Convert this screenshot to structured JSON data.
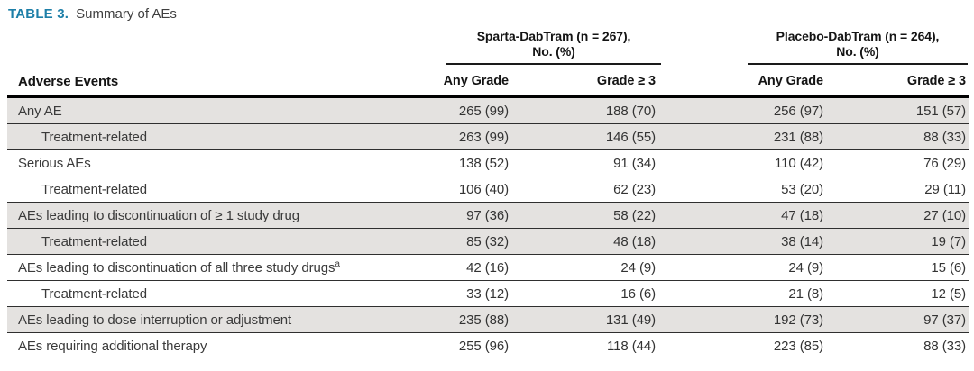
{
  "caption": {
    "label": "TABLE 3.",
    "text": "Summary of AEs"
  },
  "colors": {
    "accent_teal": "#1d7fa8",
    "row_stripe": "#e4e2e0",
    "rule_thin": "#2f2f2f",
    "rule_thick": "#000000"
  },
  "table": {
    "groups": [
      {
        "title_line1": "Sparta-DabTram (n = 267),",
        "title_line2": "No. (%)"
      },
      {
        "title_line1": "Placebo-DabTram (n = 264),",
        "title_line2": "No. (%)"
      }
    ],
    "columns": {
      "label_header": "Adverse Events",
      "sub_headers": [
        "Any Grade",
        "Grade ≥ 3",
        "Any Grade",
        "Grade ≥ 3"
      ]
    },
    "rows": [
      {
        "label": "Any AE",
        "indent": false,
        "shaded": true,
        "cells": [
          "265 (99)",
          "188 (70)",
          "256 (97)",
          "151 (57)"
        ]
      },
      {
        "label": "Treatment-related",
        "indent": true,
        "shaded": true,
        "cells": [
          "263 (99)",
          "146 (55)",
          "231 (88)",
          "88 (33)"
        ]
      },
      {
        "label": "Serious AEs",
        "indent": false,
        "shaded": false,
        "cells": [
          "138 (52)",
          "91 (34)",
          "110 (42)",
          "76 (29)"
        ]
      },
      {
        "label": "Treatment-related",
        "indent": true,
        "shaded": false,
        "cells": [
          "106 (40)",
          "62 (23)",
          "53 (20)",
          "29 (11)"
        ]
      },
      {
        "label": "AEs leading to discontinuation of ≥ 1 study drug",
        "indent": false,
        "shaded": true,
        "cells": [
          "97 (36)",
          "58 (22)",
          "47 (18)",
          "27 (10)"
        ]
      },
      {
        "label": "Treatment-related",
        "indent": true,
        "shaded": true,
        "cells": [
          "85 (32)",
          "48 (18)",
          "38 (14)",
          "19 (7)"
        ]
      },
      {
        "label": "AEs leading to discontinuation of all three study drugs",
        "label_sup": "a",
        "indent": false,
        "shaded": false,
        "cells": [
          "42 (16)",
          "24 (9)",
          "24 (9)",
          "15 (6)"
        ]
      },
      {
        "label": "Treatment-related",
        "indent": true,
        "shaded": false,
        "cells": [
          "33 (12)",
          "16 (6)",
          "21 (8)",
          "12 (5)"
        ]
      },
      {
        "label": "AEs leading to dose interruption or adjustment",
        "indent": false,
        "shaded": true,
        "cells": [
          "235 (88)",
          "131 (49)",
          "192 (73)",
          "97 (37)"
        ]
      },
      {
        "label": "AEs requiring additional therapy",
        "indent": false,
        "shaded": false,
        "cells": [
          "255 (96)",
          "118 (44)",
          "223 (85)",
          "88 (33)"
        ]
      }
    ]
  }
}
